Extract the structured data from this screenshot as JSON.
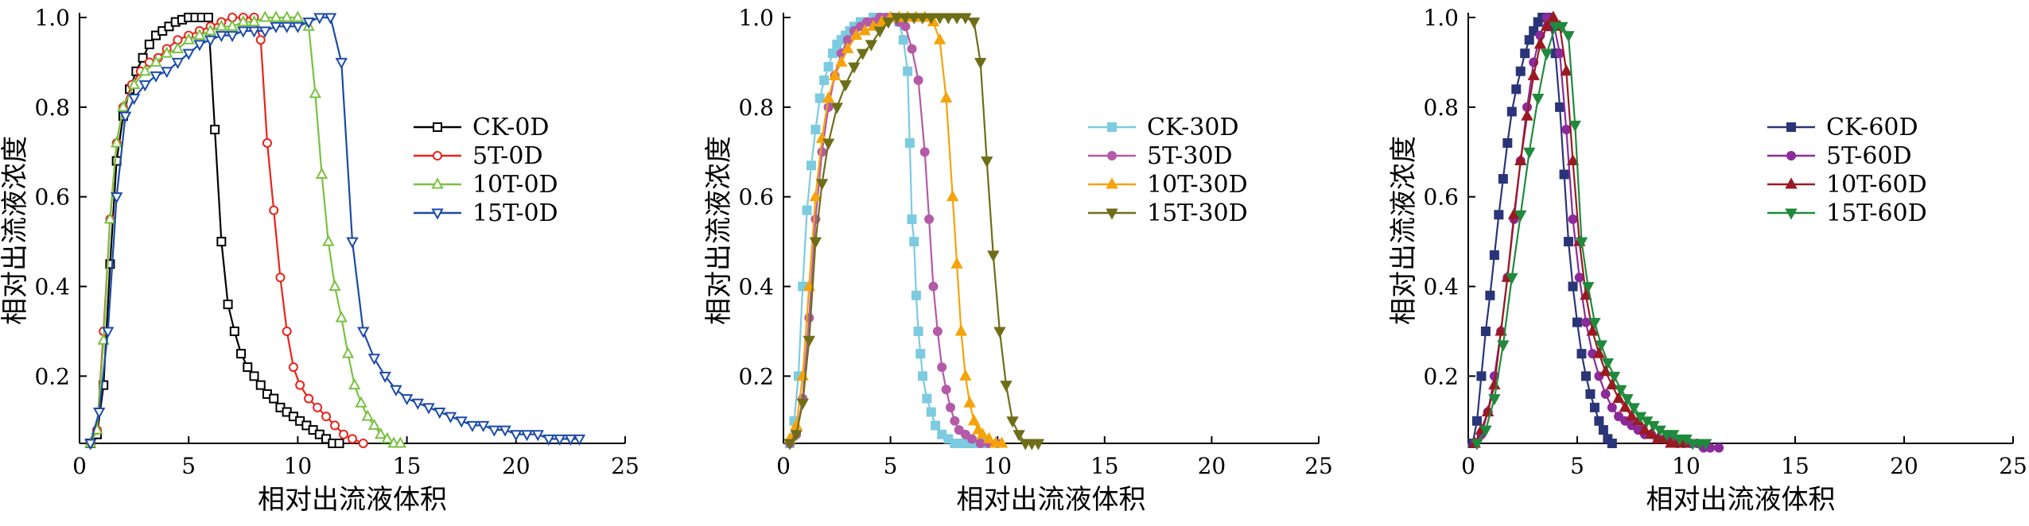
{
  "chart_data": [
    {
      "type": "line",
      "xlabel": "相对出流液体积",
      "ylabel": "相对出流液浓度",
      "xlim": [
        0,
        25
      ],
      "ylim": [
        0.05,
        1.0
      ],
      "xticks": [
        0,
        5,
        10,
        15,
        20,
        25
      ],
      "yticks": [
        0.2,
        0.4,
        0.6,
        0.8,
        1.0
      ],
      "ytick_labels": [
        "0.2",
        "0.4",
        "0.6",
        "0.8",
        "1.0"
      ],
      "legend_position": "right",
      "series": [
        {
          "name": "CK-0D",
          "color": "#000000",
          "marker": "square-open",
          "x": [
            0.5,
            0.8,
            1.1,
            1.4,
            1.7,
            2.0,
            2.3,
            2.6,
            2.9,
            3.2,
            3.5,
            3.8,
            4.1,
            4.4,
            4.7,
            5.0,
            5.3,
            5.6,
            5.9,
            6.2,
            6.5,
            6.8,
            7.1,
            7.4,
            7.7,
            8.0,
            8.3,
            8.6,
            8.9,
            9.2,
            9.5,
            9.8,
            10.1,
            10.4,
            10.7,
            11.0,
            11.3,
            11.6,
            11.9
          ],
          "y": [
            0.05,
            0.07,
            0.18,
            0.45,
            0.68,
            0.78,
            0.84,
            0.88,
            0.91,
            0.94,
            0.96,
            0.97,
            0.98,
            0.99,
            0.995,
            1.0,
            1.0,
            1.0,
            1.0,
            0.75,
            0.5,
            0.36,
            0.3,
            0.25,
            0.22,
            0.2,
            0.18,
            0.16,
            0.15,
            0.13,
            0.12,
            0.11,
            0.1,
            0.09,
            0.08,
            0.07,
            0.06,
            0.05,
            0.05
          ]
        },
        {
          "name": "5T-0D",
          "color": "#e8241a",
          "marker": "circle-open",
          "x": [
            0.5,
            0.8,
            1.1,
            1.4,
            1.7,
            2.0,
            2.4,
            2.8,
            3.2,
            3.6,
            4.0,
            4.5,
            5.0,
            5.5,
            6.0,
            6.5,
            7.0,
            7.5,
            8.0,
            8.3,
            8.6,
            8.9,
            9.2,
            9.5,
            9.8,
            10.1,
            10.5,
            10.9,
            11.3,
            11.7,
            12.1,
            12.5,
            13.0
          ],
          "y": [
            0.05,
            0.08,
            0.3,
            0.55,
            0.72,
            0.8,
            0.85,
            0.88,
            0.9,
            0.91,
            0.93,
            0.95,
            0.96,
            0.97,
            0.98,
            0.99,
            1.0,
            1.0,
            1.0,
            0.95,
            0.72,
            0.57,
            0.42,
            0.3,
            0.22,
            0.18,
            0.15,
            0.13,
            0.11,
            0.09,
            0.07,
            0.06,
            0.05
          ]
        },
        {
          "name": "10T-0D",
          "color": "#7ac142",
          "marker": "triangle-up-open",
          "x": [
            0.5,
            0.8,
            1.1,
            1.4,
            1.7,
            2.0,
            2.5,
            3.0,
            3.5,
            4.0,
            4.5,
            5.0,
            5.5,
            6.0,
            6.5,
            7.0,
            7.5,
            8.0,
            8.5,
            9.0,
            9.5,
            10.0,
            10.5,
            10.8,
            11.1,
            11.4,
            11.7,
            12.0,
            12.3,
            12.6,
            12.9,
            13.2,
            13.5,
            13.8,
            14.1,
            14.4,
            14.7
          ],
          "y": [
            0.05,
            0.08,
            0.28,
            0.55,
            0.72,
            0.8,
            0.85,
            0.88,
            0.9,
            0.92,
            0.93,
            0.95,
            0.96,
            0.97,
            0.98,
            0.98,
            0.99,
            0.99,
            1.0,
            1.0,
            1.0,
            1.0,
            0.98,
            0.83,
            0.65,
            0.5,
            0.4,
            0.33,
            0.25,
            0.18,
            0.14,
            0.11,
            0.09,
            0.07,
            0.06,
            0.05,
            0.05
          ]
        },
        {
          "name": "15T-0D",
          "color": "#1b4aa8",
          "marker": "triangle-down-open",
          "x": [
            0.5,
            0.9,
            1.3,
            1.7,
            2.1,
            2.5,
            3.0,
            3.5,
            4.0,
            4.5,
            5.0,
            5.5,
            6.0,
            6.5,
            7.0,
            7.5,
            8.0,
            8.5,
            9.0,
            9.5,
            10.0,
            10.5,
            11.0,
            11.5,
            12.0,
            12.5,
            13.0,
            13.5,
            14.0,
            14.5,
            15.0,
            15.5,
            16.0,
            16.5,
            17.0,
            17.5,
            18.0,
            18.5,
            19.0,
            19.5,
            20.0,
            20.5,
            21.0,
            21.5,
            22.0,
            22.5,
            22.9
          ],
          "y": [
            0.05,
            0.12,
            0.3,
            0.6,
            0.78,
            0.82,
            0.85,
            0.87,
            0.88,
            0.9,
            0.92,
            0.94,
            0.95,
            0.96,
            0.96,
            0.97,
            0.97,
            0.97,
            0.98,
            0.98,
            0.98,
            0.99,
            1.0,
            1.0,
            0.9,
            0.5,
            0.3,
            0.24,
            0.2,
            0.17,
            0.15,
            0.14,
            0.13,
            0.12,
            0.11,
            0.1,
            0.09,
            0.09,
            0.08,
            0.08,
            0.07,
            0.07,
            0.07,
            0.06,
            0.06,
            0.06,
            0.06
          ]
        }
      ]
    },
    {
      "type": "line",
      "xlabel": "相对出流液体积",
      "ylabel": "相对出流液浓度",
      "xlim": [
        0,
        25
      ],
      "ylim": [
        0.05,
        1.0
      ],
      "xticks": [
        0,
        5,
        10,
        15,
        20,
        25
      ],
      "yticks": [
        0.2,
        0.4,
        0.6,
        0.8,
        1.0
      ],
      "ytick_labels": [
        "0.2",
        "0.4",
        "0.6",
        "0.8",
        "1.0"
      ],
      "legend_position": "right",
      "series": [
        {
          "name": "CK-30D",
          "color": "#7ccbe0",
          "marker": "square",
          "x": [
            0.3,
            0.5,
            0.7,
            0.9,
            1.1,
            1.3,
            1.5,
            1.7,
            1.9,
            2.1,
            2.3,
            2.5,
            2.7,
            2.9,
            3.1,
            3.3,
            3.6,
            3.9,
            4.2,
            4.5,
            4.8,
            5.1,
            5.4,
            5.6,
            5.8,
            5.9,
            6.0,
            6.1,
            6.2,
            6.3,
            6.4,
            6.5,
            6.7,
            6.9,
            7.1,
            7.4,
            7.7,
            8.0,
            8.3,
            8.6,
            9.0,
            9.4
          ],
          "y": [
            0.05,
            0.1,
            0.2,
            0.4,
            0.57,
            0.67,
            0.75,
            0.82,
            0.86,
            0.89,
            0.92,
            0.94,
            0.95,
            0.96,
            0.97,
            0.98,
            0.99,
            0.99,
            1.0,
            1.0,
            1.0,
            1.0,
            0.99,
            0.95,
            0.88,
            0.72,
            0.55,
            0.5,
            0.38,
            0.3,
            0.25,
            0.2,
            0.15,
            0.12,
            0.09,
            0.07,
            0.06,
            0.05,
            0.05,
            0.05,
            0.05,
            0.05
          ]
        },
        {
          "name": "5T-30D",
          "color": "#b35aa8",
          "marker": "circle",
          "x": [
            0.3,
            0.6,
            0.9,
            1.2,
            1.5,
            1.8,
            2.1,
            2.4,
            2.7,
            3.0,
            3.3,
            3.6,
            3.9,
            4.2,
            4.5,
            4.8,
            5.1,
            5.4,
            5.7,
            6.0,
            6.3,
            6.6,
            6.8,
            7.0,
            7.2,
            7.4,
            7.6,
            7.8,
            8.0,
            8.2,
            8.5,
            8.8,
            9.2,
            9.6,
            10.0
          ],
          "y": [
            0.05,
            0.07,
            0.15,
            0.33,
            0.55,
            0.7,
            0.8,
            0.87,
            0.92,
            0.95,
            0.97,
            0.98,
            0.99,
            0.99,
            1.0,
            1.0,
            1.0,
            0.99,
            0.98,
            0.93,
            0.86,
            0.7,
            0.55,
            0.4,
            0.3,
            0.22,
            0.17,
            0.13,
            0.1,
            0.08,
            0.07,
            0.06,
            0.05,
            0.05,
            0.05
          ]
        },
        {
          "name": "10T-30D",
          "color": "#f5a30a",
          "marker": "triangle-up",
          "x": [
            0.3,
            0.6,
            0.9,
            1.2,
            1.5,
            1.8,
            2.1,
            2.4,
            2.7,
            3.0,
            3.4,
            3.8,
            4.2,
            4.6,
            5.0,
            5.4,
            5.8,
            6.2,
            6.6,
            7.0,
            7.3,
            7.6,
            7.9,
            8.1,
            8.3,
            8.5,
            8.7,
            8.9,
            9.1,
            9.3,
            9.6,
            9.9,
            10.2
          ],
          "y": [
            0.06,
            0.09,
            0.2,
            0.4,
            0.6,
            0.73,
            0.82,
            0.87,
            0.9,
            0.93,
            0.96,
            0.97,
            0.98,
            0.99,
            1.0,
            1.0,
            1.0,
            1.0,
            1.0,
            0.99,
            0.95,
            0.82,
            0.6,
            0.45,
            0.3,
            0.2,
            0.14,
            0.1,
            0.08,
            0.07,
            0.06,
            0.05,
            0.05
          ]
        },
        {
          "name": "15T-30D",
          "color": "#6e6e18",
          "marker": "triangle-down",
          "x": [
            0.3,
            0.6,
            0.9,
            1.2,
            1.5,
            1.8,
            2.1,
            2.5,
            2.9,
            3.3,
            3.7,
            4.1,
            4.5,
            4.9,
            5.3,
            5.7,
            6.1,
            6.5,
            6.9,
            7.3,
            7.7,
            8.1,
            8.5,
            8.9,
            9.2,
            9.5,
            9.8,
            10.1,
            10.4,
            10.7,
            11.0,
            11.3,
            11.6,
            11.9
          ],
          "y": [
            0.05,
            0.07,
            0.14,
            0.28,
            0.5,
            0.63,
            0.72,
            0.8,
            0.85,
            0.89,
            0.92,
            0.94,
            0.97,
            0.99,
            1.0,
            1.0,
            1.0,
            1.0,
            1.0,
            1.0,
            1.0,
            1.0,
            1.0,
            0.99,
            0.9,
            0.68,
            0.47,
            0.3,
            0.18,
            0.1,
            0.07,
            0.05,
            0.05,
            0.05
          ]
        }
      ]
    },
    {
      "type": "line",
      "xlabel": "相对出流液体积",
      "ylabel": "相对出流液浓度",
      "xlim": [
        0,
        25
      ],
      "ylim": [
        0.05,
        1.0
      ],
      "xticks": [
        0,
        5,
        10,
        15,
        20,
        25
      ],
      "yticks": [
        0.2,
        0.4,
        0.6,
        0.8,
        1.0
      ],
      "ytick_labels": [
        "0.2",
        "0.4",
        "0.6",
        "0.8",
        "1.0"
      ],
      "legend_position": "top-right",
      "series": [
        {
          "name": "CK-60D",
          "color": "#2a3478",
          "marker": "square",
          "x": [
            0.2,
            0.4,
            0.6,
            0.8,
            1.0,
            1.2,
            1.4,
            1.6,
            1.8,
            2.0,
            2.2,
            2.4,
            2.6,
            2.8,
            3.0,
            3.2,
            3.4,
            3.6,
            3.8,
            4.0,
            4.2,
            4.4,
            4.6,
            4.8,
            5.0,
            5.2,
            5.4,
            5.6,
            5.8,
            6.0,
            6.2,
            6.4,
            6.6
          ],
          "y": [
            0.05,
            0.1,
            0.2,
            0.3,
            0.38,
            0.47,
            0.56,
            0.64,
            0.72,
            0.79,
            0.84,
            0.88,
            0.92,
            0.95,
            0.97,
            0.99,
            1.0,
            1.0,
            0.98,
            0.92,
            0.8,
            0.65,
            0.5,
            0.4,
            0.32,
            0.25,
            0.2,
            0.16,
            0.13,
            0.1,
            0.08,
            0.06,
            0.05
          ]
        },
        {
          "name": "5T-60D",
          "color": "#8b2a9a",
          "marker": "circle",
          "x": [
            0.3,
            0.6,
            0.9,
            1.2,
            1.5,
            1.8,
            2.1,
            2.4,
            2.7,
            3.0,
            3.3,
            3.6,
            3.9,
            4.2,
            4.5,
            4.8,
            5.1,
            5.4,
            5.7,
            6.0,
            6.3,
            6.6,
            6.9,
            7.2,
            7.5,
            7.8,
            8.1,
            8.4,
            8.7,
            9.0,
            9.3,
            9.6,
            9.9,
            10.2,
            10.5,
            10.8,
            11.1,
            11.5
          ],
          "y": [
            0.05,
            0.07,
            0.12,
            0.2,
            0.3,
            0.42,
            0.55,
            0.68,
            0.8,
            0.9,
            0.96,
            1.0,
            0.99,
            0.92,
            0.75,
            0.55,
            0.42,
            0.32,
            0.25,
            0.2,
            0.16,
            0.13,
            0.11,
            0.1,
            0.09,
            0.08,
            0.07,
            0.07,
            0.06,
            0.06,
            0.06,
            0.05,
            0.05,
            0.05,
            0.05,
            0.04,
            0.04,
            0.04
          ]
        },
        {
          "name": "10T-60D",
          "color": "#9a1a22",
          "marker": "triangle-up",
          "x": [
            0.3,
            0.6,
            0.9,
            1.2,
            1.5,
            1.8,
            2.1,
            2.4,
            2.7,
            3.0,
            3.3,
            3.6,
            3.9,
            4.2,
            4.5,
            4.8,
            5.1,
            5.4,
            5.7,
            6.0,
            6.3,
            6.6,
            6.9,
            7.2,
            7.5,
            7.8,
            8.1,
            8.4,
            8.7,
            9.0,
            9.3,
            9.6,
            9.9
          ],
          "y": [
            0.05,
            0.08,
            0.12,
            0.18,
            0.3,
            0.42,
            0.56,
            0.68,
            0.78,
            0.87,
            0.94,
            0.98,
            1.0,
            0.98,
            0.88,
            0.68,
            0.5,
            0.38,
            0.3,
            0.25,
            0.21,
            0.18,
            0.15,
            0.13,
            0.11,
            0.1,
            0.08,
            0.07,
            0.06,
            0.06,
            0.05,
            0.05,
            0.05
          ]
        },
        {
          "name": "15T-60D",
          "color": "#1f8a3c",
          "marker": "triangle-down",
          "x": [
            0.4,
            0.8,
            1.2,
            1.6,
            2.0,
            2.4,
            2.8,
            3.2,
            3.6,
            4.0,
            4.3,
            4.6,
            4.9,
            5.2,
            5.5,
            5.8,
            6.1,
            6.4,
            6.7,
            7.0,
            7.3,
            7.6,
            7.9,
            8.2,
            8.5,
            8.8,
            9.1,
            9.4,
            9.7,
            10.0,
            10.3,
            10.6,
            10.9
          ],
          "y": [
            0.05,
            0.08,
            0.15,
            0.27,
            0.42,
            0.56,
            0.7,
            0.82,
            0.92,
            0.98,
            0.98,
            0.96,
            0.76,
            0.5,
            0.4,
            0.32,
            0.27,
            0.23,
            0.2,
            0.17,
            0.15,
            0.13,
            0.11,
            0.1,
            0.09,
            0.08,
            0.07,
            0.07,
            0.06,
            0.06,
            0.05,
            0.05,
            0.05
          ]
        }
      ]
    }
  ]
}
